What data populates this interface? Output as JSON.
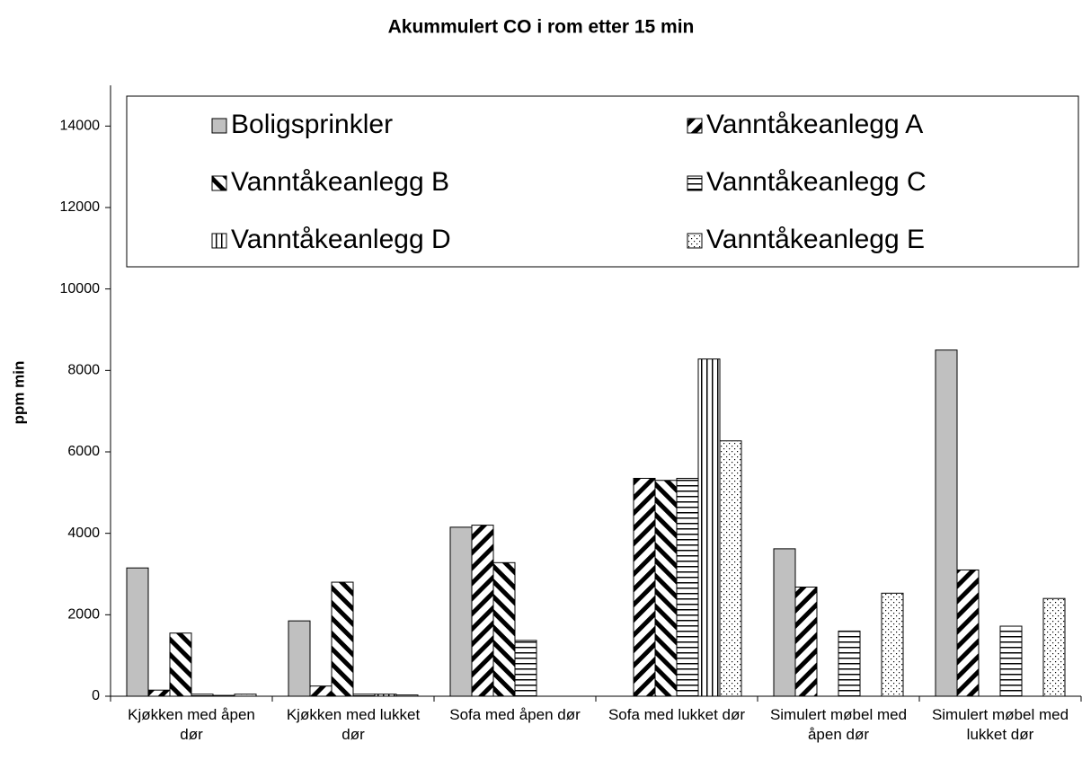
{
  "chart_data": {
    "type": "bar",
    "title": "Akummulert CO i rom etter 15 min",
    "y_label": "ppm min",
    "categories": [
      "Kjøkken med åpen dør",
      "Kjøkken med lukket dør",
      "Sofa med åpen dør",
      "Sofa med lukket dør",
      "Simulert møbel med åpen dør",
      "Simulert møbel med lukket dør"
    ],
    "series": [
      {
        "name": "Boligsprinkler",
        "color": "#c0c0c0",
        "pattern": "solid",
        "values": [
          3150,
          1850,
          4150,
          0,
          3620,
          8500
        ]
      },
      {
        "name": "Vanntåkeanlegg A",
        "color": "#ffffff",
        "pattern": "diagonal-up",
        "values": [
          150,
          250,
          4200,
          5350,
          2680,
          3100
        ]
      },
      {
        "name": "Vanntåkeanlegg B",
        "color": "#ffffff",
        "pattern": "diagonal-down",
        "values": [
          1550,
          2800,
          3280,
          5300,
          0,
          0
        ]
      },
      {
        "name": "Vanntåkeanlegg C",
        "color": "#ffffff",
        "pattern": "horizontal",
        "values": [
          50,
          50,
          1370,
          5350,
          1600,
          1720
        ]
      },
      {
        "name": "Vanntåkeanlegg D",
        "color": "#ffffff",
        "pattern": "vertical",
        "values": [
          20,
          50,
          0,
          8280,
          0,
          0
        ]
      },
      {
        "name": "Vanntåkeanlegg E",
        "color": "#ffffff",
        "pattern": "dots",
        "values": [
          50,
          30,
          0,
          6270,
          2530,
          2400
        ]
      }
    ],
    "ylim": [
      0,
      15000
    ],
    "yticks": [
      0,
      2000,
      4000,
      6000,
      8000,
      10000,
      12000,
      14000
    ],
    "legend": "top"
  }
}
